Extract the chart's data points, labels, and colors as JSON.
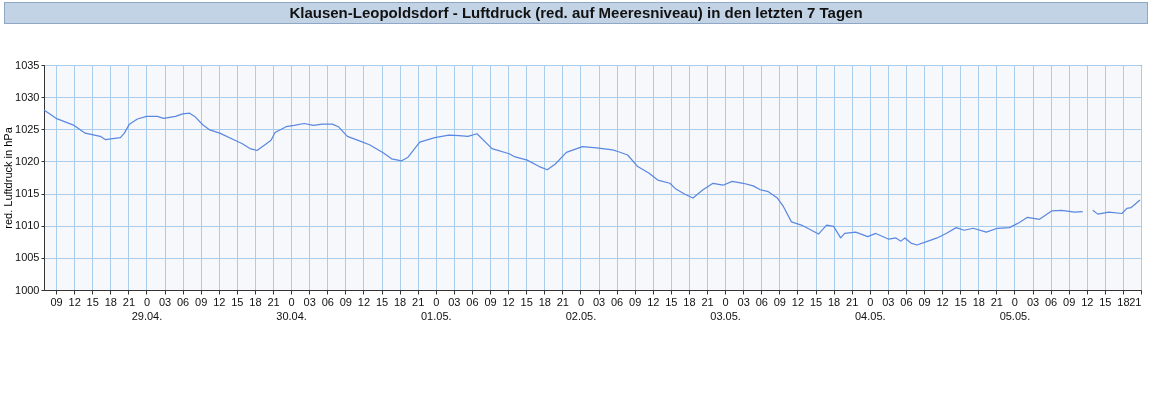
{
  "chart_data": {
    "type": "line",
    "title": "Klausen-Leopoldsdorf - Luftdruck (red. auf Meeresniveau) in den letzten 7 Tagen",
    "ylabel": "red. Luftdruck in hPa",
    "x": [
      "--04-28T07:00",
      "--04-28T09:00",
      "--04-28T12:00",
      "--04-28T13:50",
      "--04-28T16:20",
      "--04-28T17:10",
      "--04-28T19:40",
      "--04-28T20:20",
      "--04-28T21:10",
      "--04-28T22:30",
      "--04-29T00:00",
      "--04-29T01:50",
      "--04-29T02:50",
      "--04-29T04:50",
      "--04-29T06:00",
      "--04-29T07:10",
      "--04-29T08:00",
      "--04-29T09:20",
      "--04-29T10:30",
      "--04-29T12:10",
      "--04-29T14:40",
      "--04-29T15:50",
      "--04-29T17:10",
      "--04-29T18:20",
      "--04-29T19:40",
      "--04-29T20:40",
      "--04-29T21:20",
      "--04-29T23:10",
      "--04-30T00:30",
      "--04-30T02:10",
      "--04-30T03:40",
      "--04-30T05:10",
      "--04-30T06:50",
      "--04-30T07:50",
      "--04-30T09:20",
      "--04-30T11:20",
      "--04-30T13:00",
      "--04-30T15:20",
      "--04-30T16:40",
      "--04-30T18:20",
      "--04-30T19:20",
      "--04-30T21:20",
      "--04-30T23:50",
      "--05-01T02:10",
      "--05-01T03:50",
      "--05-01T05:20",
      "--05-01T06:50",
      "--05-01T09:20",
      "--05-01T12:10",
      "--05-01T13:10",
      "--05-01T15:10",
      "--05-01T17:10",
      "--05-01T18:30",
      "--05-01T19:50",
      "--05-01T21:40",
      "--05-02T00:20",
      "--05-02T02:40",
      "--05-02T05:20",
      "--05-02T06:20",
      "--05-02T07:50",
      "--05-02T09:30",
      "--05-02T11:20",
      "--05-02T12:50",
      "--05-02T14:50",
      "--05-02T15:50",
      "--05-02T17:20",
      "--05-02T18:40",
      "--05-02T20:20",
      "--05-02T22:00",
      "--05-02T23:40",
      "--05-03T01:10",
      "--05-03T03:00",
      "--05-03T04:40",
      "--05-03T05:50",
      "--05-03T07:10",
      "--05-03T08:40",
      "--05-03T09:40",
      "--05-03T11:00",
      "--05-03T12:40",
      "--05-03T15:30",
      "--05-03T16:50",
      "--05-03T18:00",
      "--05-03T19:10",
      "--05-03T19:50",
      "--05-03T21:40",
      "--05-03T23:40",
      "--05-04T01:00",
      "--05-04T03:10",
      "--05-04T04:20",
      "--05-04T05:10",
      "--05-04T05:50",
      "--05-04T06:50",
      "--05-04T07:50",
      "--05-04T09:40",
      "--05-04T11:10",
      "--05-04T12:40",
      "--05-04T14:20",
      "--05-04T15:40",
      "--05-04T17:10",
      "--05-04T19:20",
      "--05-04T21:10",
      "--05-04T23:10",
      "--05-05T00:50",
      "--05-05T02:10",
      "--05-05T04:10",
      "--05-05T06:10",
      "--05-05T07:50",
      "--05-05T10:00",
      "--05-05T11:20",
      "--05-05T12:10",
      "--05-05T13:00",
      "--05-05T13:50",
      "--05-05T15:40",
      "--05-05T17:50",
      "--05-05T18:40",
      "--05-05T19:20",
      "--05-05T20:50"
    ],
    "series": [
      {
        "color": "#5a87e0",
        "values": [
          1028.0,
          1026.7,
          1025.6,
          1024.4,
          1023.9,
          1023.4,
          1023.7,
          1024.4,
          1025.8,
          1026.6,
          1027.0,
          1027.0,
          1026.7,
          1027.0,
          1027.4,
          1027.5,
          1027.0,
          1025.7,
          1024.9,
          1024.4,
          1023.3,
          1022.8,
          1022.0,
          1021.7,
          1022.6,
          1023.3,
          1024.5,
          1025.4,
          1025.6,
          1025.9,
          1025.6,
          1025.8,
          1025.8,
          1025.4,
          1023.9,
          1023.2,
          1022.6,
          1021.3,
          1020.4,
          1020.1,
          1020.6,
          1023.0,
          1023.7,
          1024.1,
          1024.0,
          1023.9,
          1024.3,
          1022.0,
          1021.2,
          1020.7,
          1020.2,
          1019.2,
          1018.7,
          1019.6,
          1021.4,
          1022.3,
          1022.1,
          1021.8,
          1021.5,
          1021.0,
          1019.2,
          1018.2,
          1017.1,
          1016.6,
          1015.7,
          1014.9,
          1014.3,
          1015.6,
          1016.6,
          1016.3,
          1016.9,
          1016.6,
          1016.2,
          1015.6,
          1015.3,
          1014.3,
          1013.0,
          1010.6,
          1010.1,
          1008.7,
          1010.1,
          1009.9,
          1008.1,
          1008.8,
          1009.0,
          1008.3,
          1008.8,
          1007.9,
          1008.1,
          1007.6,
          1008.1,
          1007.3,
          1007.0,
          1007.6,
          1008.1,
          1008.8,
          1009.7,
          1009.3,
          1009.6,
          1009.0,
          1009.6,
          1009.7,
          1010.5,
          1011.3,
          1011.0,
          1012.3,
          1012.4,
          1012.1,
          1012.2,
          null,
          1012.4,
          1011.8,
          1012.1,
          1011.9,
          1012.7,
          1012.8,
          1014.0
        ]
      }
    ],
    "xlim": [
      "--04-28T07:00",
      "--05-05T21:00"
    ],
    "xticks": [
      {
        "value": "--04-28T09:00",
        "label": "09"
      },
      {
        "value": "--04-28T12:00",
        "label": "12"
      },
      {
        "value": "--04-28T15:00",
        "label": "15"
      },
      {
        "value": "--04-28T18:00",
        "label": "18"
      },
      {
        "value": "--04-28T21:00",
        "label": "21"
      },
      {
        "value": "--04-29T00:00",
        "label": "0\n29.04."
      },
      {
        "value": "--04-29T03:00",
        "label": "03"
      },
      {
        "value": "--04-29T06:00",
        "label": "06"
      },
      {
        "value": "--04-29T09:00",
        "label": "09"
      },
      {
        "value": "--04-29T12:00",
        "label": "12"
      },
      {
        "value": "--04-29T15:00",
        "label": "15"
      },
      {
        "value": "--04-29T18:00",
        "label": "18"
      },
      {
        "value": "--04-29T21:00",
        "label": "21"
      },
      {
        "value": "--04-30T00:00",
        "label": "0\n30.04."
      },
      {
        "value": "--04-30T03:00",
        "label": "03"
      },
      {
        "value": "--04-30T06:00",
        "label": "06"
      },
      {
        "value": "--04-30T09:00",
        "label": "09"
      },
      {
        "value": "--04-30T12:00",
        "label": "12"
      },
      {
        "value": "--04-30T15:00",
        "label": "15"
      },
      {
        "value": "--04-30T18:00",
        "label": "18"
      },
      {
        "value": "--04-30T21:00",
        "label": "21"
      },
      {
        "value": "--05-01T00:00",
        "label": "0\n01.05."
      },
      {
        "value": "--05-01T03:00",
        "label": "03"
      },
      {
        "value": "--05-01T06:00",
        "label": "06"
      },
      {
        "value": "--05-01T09:00",
        "label": "09"
      },
      {
        "value": "--05-01T12:00",
        "label": "12"
      },
      {
        "value": "--05-01T15:00",
        "label": "15"
      },
      {
        "value": "--05-01T18:00",
        "label": "18"
      },
      {
        "value": "--05-01T21:00",
        "label": "21"
      },
      {
        "value": "--05-02T00:00",
        "label": "0\n02.05."
      },
      {
        "value": "--05-02T03:00",
        "label": "03"
      },
      {
        "value": "--05-02T06:00",
        "label": "06"
      },
      {
        "value": "--05-02T09:00",
        "label": "09"
      },
      {
        "value": "--05-02T12:00",
        "label": "12"
      },
      {
        "value": "--05-02T15:00",
        "label": "15"
      },
      {
        "value": "--05-02T18:00",
        "label": "18"
      },
      {
        "value": "--05-02T21:00",
        "label": "21"
      },
      {
        "value": "--05-03T00:00",
        "label": "0\n03.05."
      },
      {
        "value": "--05-03T03:00",
        "label": "03"
      },
      {
        "value": "--05-03T06:00",
        "label": "06"
      },
      {
        "value": "--05-03T09:00",
        "label": "09"
      },
      {
        "value": "--05-03T12:00",
        "label": "12"
      },
      {
        "value": "--05-03T15:00",
        "label": "15"
      },
      {
        "value": "--05-03T18:00",
        "label": "18"
      },
      {
        "value": "--05-03T21:00",
        "label": "21"
      },
      {
        "value": "--05-04T00:00",
        "label": "0\n04.05."
      },
      {
        "value": "--05-04T03:00",
        "label": "03"
      },
      {
        "value": "--05-04T06:00",
        "label": "06"
      },
      {
        "value": "--05-04T09:00",
        "label": "09"
      },
      {
        "value": "--05-04T12:00",
        "label": "12"
      },
      {
        "value": "--05-04T15:00",
        "label": "15"
      },
      {
        "value": "--05-04T18:00",
        "label": "18"
      },
      {
        "value": "--05-04T21:00",
        "label": "21"
      },
      {
        "value": "--05-05T00:00",
        "label": "0\n05.05."
      },
      {
        "value": "--05-05T03:00",
        "label": "03"
      },
      {
        "value": "--05-05T06:00",
        "label": "06"
      },
      {
        "value": "--05-05T09:00",
        "label": "09"
      },
      {
        "value": "--05-05T12:00",
        "label": "12"
      },
      {
        "value": "--05-05T15:00",
        "label": "15"
      },
      {
        "value": "--05-05T18:00",
        "label": "18"
      },
      {
        "value": "--05-05T21:00",
        "label": "21"
      }
    ],
    "ylim": [
      1000,
      1035
    ],
    "yticks": [
      1000,
      1005,
      1010,
      1015,
      1020,
      1025,
      1030,
      1035
    ],
    "grid": true,
    "marker": "none",
    "line_style": "solid"
  }
}
